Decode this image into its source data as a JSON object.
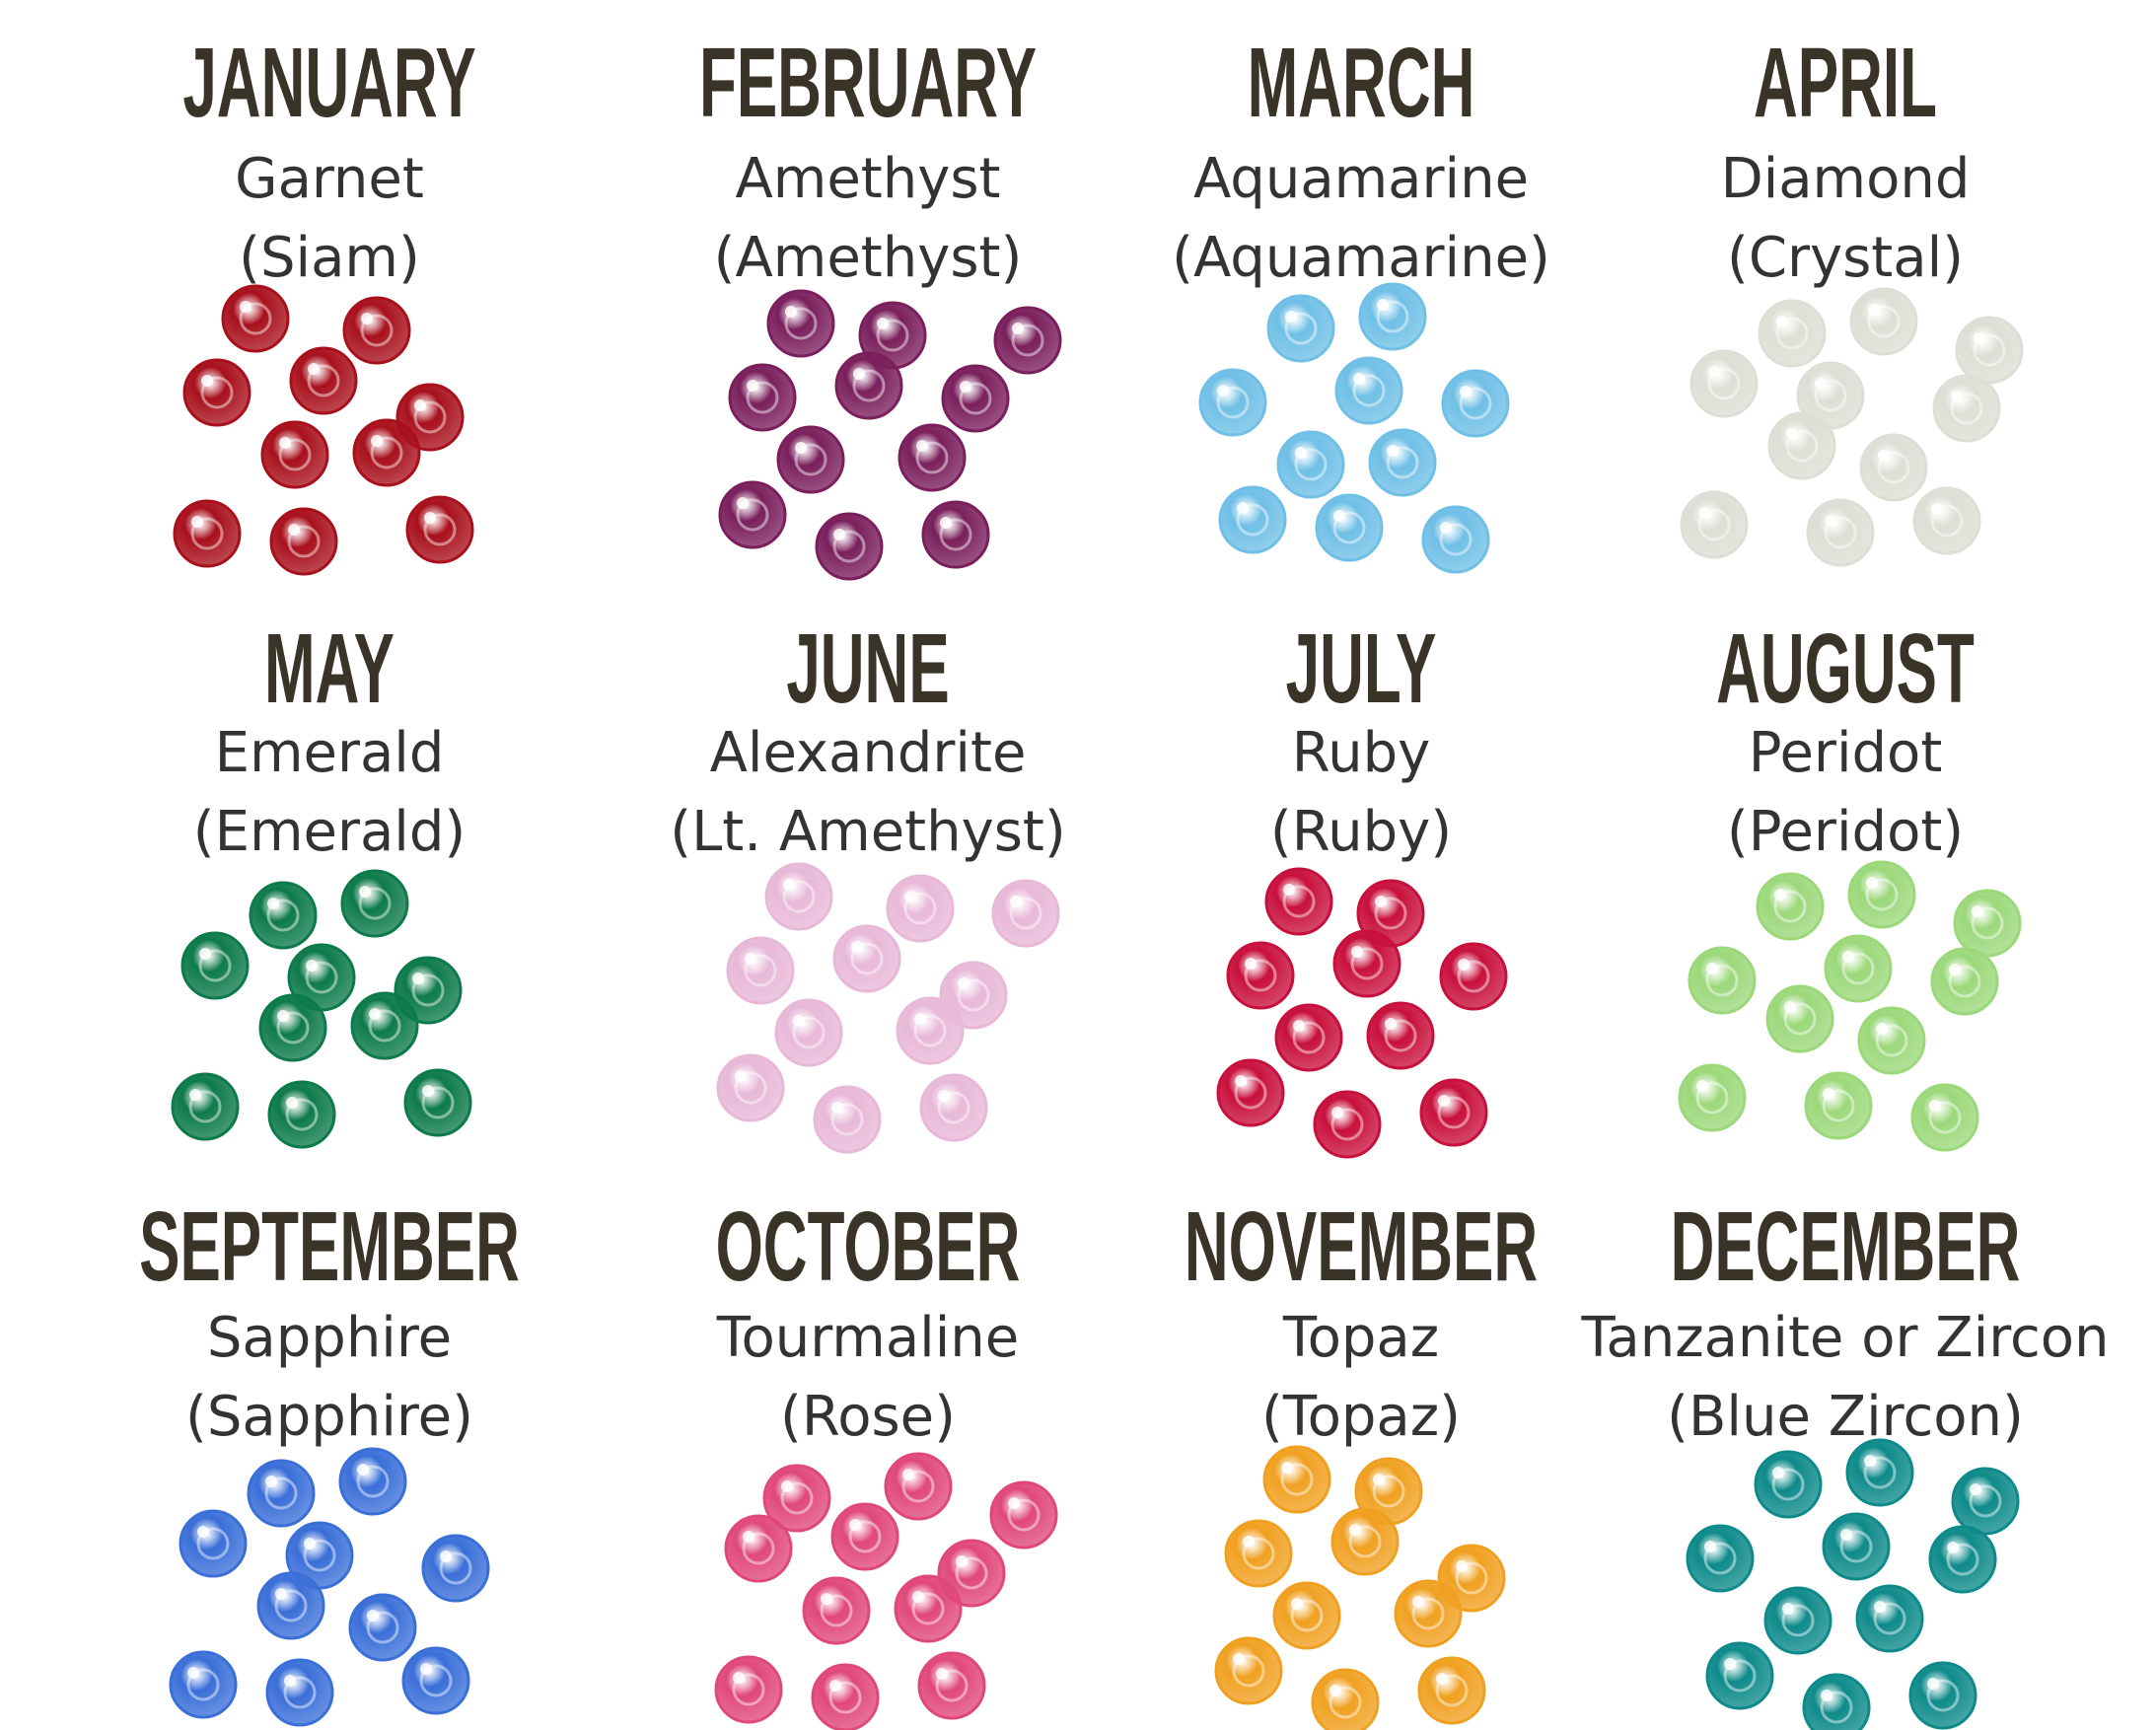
{
  "months": [
    {
      "month": "JANUARY",
      "gem": "Garnet",
      "crystal": "(Siam)",
      "color": "#a8101c"
    },
    {
      "month": "FEBRUARY",
      "gem": "Amethyst",
      "crystal": "(Amethyst)",
      "color": "#7a1f5c"
    },
    {
      "month": "MARCH",
      "gem": "Aquamarine",
      "crystal": "(Aquamarine)",
      "color": "#6fbfe6"
    },
    {
      "month": "APRIL",
      "gem": "Diamond",
      "crystal": "(Crystal)",
      "color": "#deded6"
    },
    {
      "month": "MAY",
      "gem": "Emerald",
      "crystal": "(Emerald)",
      "color": "#0d7a4a"
    },
    {
      "month": "JUNE",
      "gem": "Alexandrite",
      "crystal": "(Lt. Amethyst)",
      "color": "#e8b8d8"
    },
    {
      "month": "JULY",
      "gem": "Ruby",
      "crystal": "(Ruby)",
      "color": "#c8103c"
    },
    {
      "month": "AUGUST",
      "gem": "Peridot",
      "crystal": "(Peridot)",
      "color": "#9bd87a"
    },
    {
      "month": "SEPTEMBER",
      "gem": "Sapphire",
      "crystal": "(Sapphire)",
      "color": "#3a6fd8"
    },
    {
      "month": "OCTOBER",
      "gem": "Tourmaline",
      "crystal": "(Rose)",
      "color": "#e04878"
    },
    {
      "month": "NOVEMBER",
      "gem": "Topaz",
      "crystal": "(Topaz)",
      "color": "#f0a020"
    },
    {
      "month": "DECEMBER",
      "gem": "Tanzanite or Zircon",
      "crystal": "(Blue Zircon)",
      "color": "#0e8a8a"
    }
  ]
}
